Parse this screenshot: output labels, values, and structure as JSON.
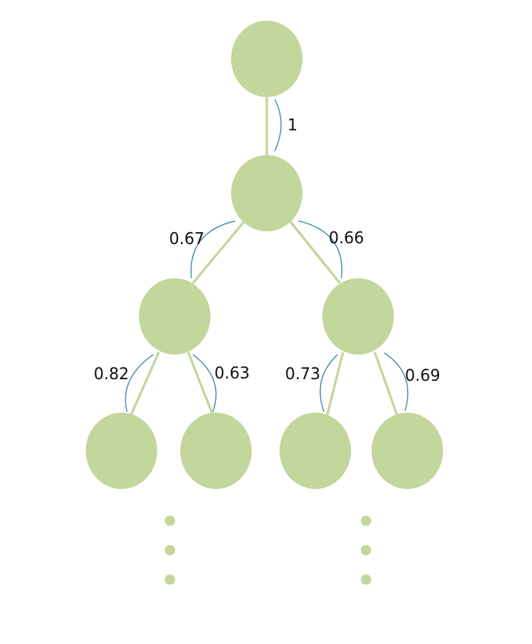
{
  "tree": {
    "edge_labels": {
      "root_to_1": "1",
      "n1_to_left": "0.67",
      "n1_to_right": "0.66",
      "left_to_ll": "0.82",
      "left_to_lr": "0.63",
      "right_to_rl": "0.73",
      "right_to_rr": "0.69"
    }
  },
  "colors": {
    "node": "#c3d69b",
    "edge": "#c2d69b",
    "arc": "#31859c"
  }
}
